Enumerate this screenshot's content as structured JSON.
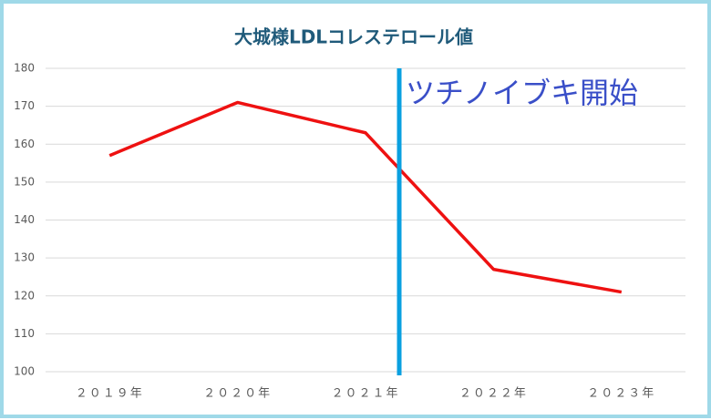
{
  "chart_data": {
    "type": "line",
    "title": "大城様LDLコレステロール値",
    "categories": [
      "２０１９年",
      "２０２０年",
      "２０２１年",
      "２０２２年",
      "２０２３年"
    ],
    "series": [
      {
        "name": "LDL",
        "color": "#ee1111",
        "values": [
          157,
          171,
          163,
          127,
          121
        ]
      }
    ],
    "ylim": [
      100,
      180
    ],
    "yticks": [
      100,
      110,
      120,
      130,
      140,
      150,
      160,
      170,
      180
    ],
    "grid": true,
    "annotation": "ツチノイブキ開始"
  }
}
